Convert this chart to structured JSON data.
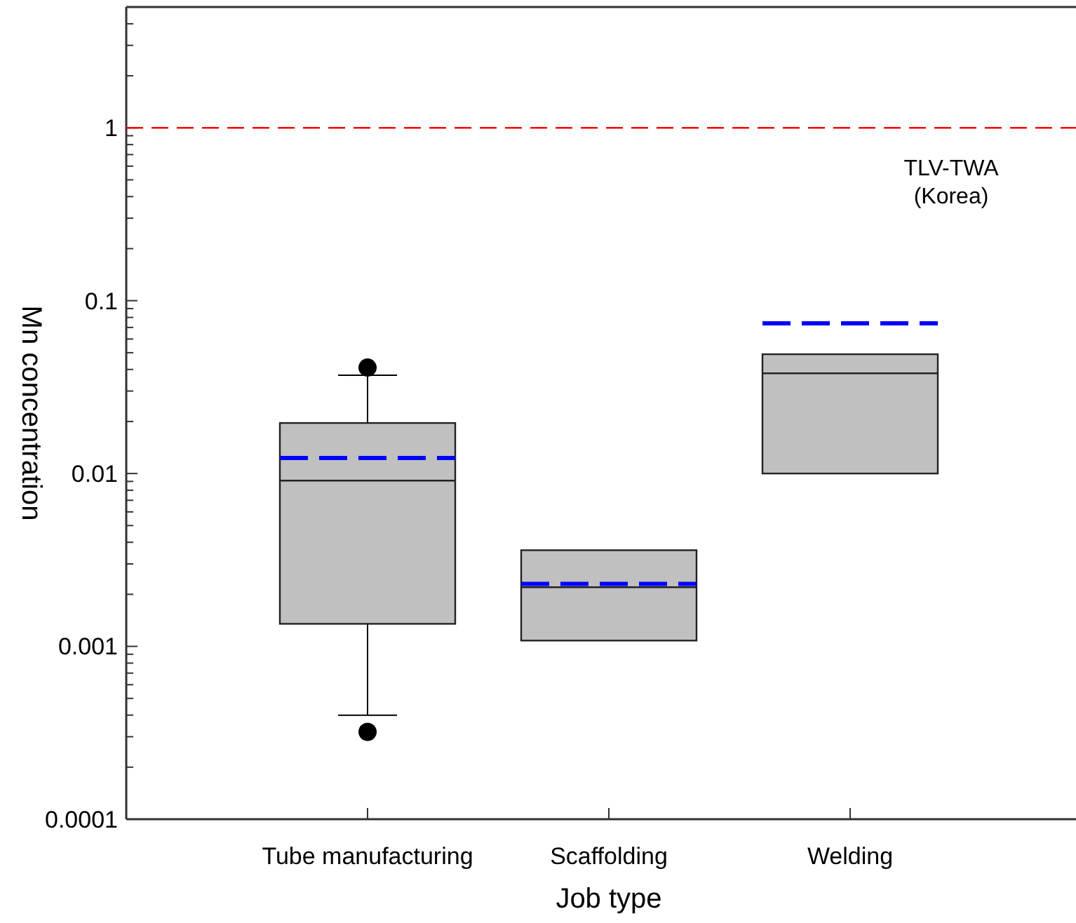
{
  "chart_data": {
    "type": "box",
    "xlabel": "Job type",
    "ylabel": "Mn concentration",
    "log": true,
    "categories": [
      "Tube manufacturing",
      "Scaffolding",
      "Welding"
    ],
    "boxes": [
      {
        "low": 0.0004,
        "q1": 0.00135,
        "median": 0.0091,
        "q3": 0.0196,
        "high": 0.037,
        "mean": 0.0123,
        "outliers": [
          0.041,
          0.00032
        ]
      },
      {
        "low": 0.00108,
        "q1": 0.00108,
        "median": 0.0022,
        "q3": 0.0036,
        "high": 0.0036,
        "mean": 0.0023
      },
      {
        "low": 0.01,
        "q1": 0.01,
        "median": 0.038,
        "q3": 0.049,
        "high": 0.049,
        "mean": 0.074
      }
    ],
    "color": "#c0c0c0",
    "ylim": [
      0.0001,
      5
    ],
    "yticks": [
      0.0001,
      {
        "value": 0.0002,
        "label": null
      },
      {
        "value": 0.0003,
        "label": null
      },
      {
        "value": 0.0004,
        "label": null
      },
      {
        "value": 0.0005,
        "label": null
      },
      {
        "value": 0.0006,
        "label": null
      },
      {
        "value": 0.0007,
        "label": null
      },
      {
        "value": 0.0008,
        "label": null
      },
      {
        "value": 0.0009,
        "label": null
      },
      0.001,
      {
        "value": 0.002,
        "label": null
      },
      {
        "value": 0.003,
        "label": null
      },
      {
        "value": 0.004,
        "label": null
      },
      {
        "value": 0.005,
        "label": null
      },
      {
        "value": 0.006,
        "label": null
      },
      {
        "value": 0.007,
        "label": null
      },
      {
        "value": 0.008,
        "label": null
      },
      {
        "value": 0.009,
        "label": null
      },
      0.01,
      {
        "value": 0.02,
        "label": null
      },
      {
        "value": 0.03,
        "label": null
      },
      {
        "value": 0.04,
        "label": null
      },
      {
        "value": 0.05,
        "label": null
      },
      {
        "value": 0.06,
        "label": null
      },
      {
        "value": 0.07,
        "label": null
      },
      {
        "value": 0.08,
        "label": null
      },
      {
        "value": 0.09,
        "label": null
      },
      0.1,
      {
        "value": 0.2,
        "label": null
      },
      {
        "value": 0.3,
        "label": null
      },
      {
        "value": 0.4,
        "label": null
      },
      {
        "value": 0.5,
        "label": null
      },
      {
        "value": 0.6,
        "label": null
      },
      {
        "value": 0.7,
        "label": null
      },
      {
        "value": 0.8,
        "label": null
      },
      {
        "value": 0.9,
        "label": null
      },
      1,
      {
        "value": 2,
        "label": null
      },
      {
        "value": 3,
        "label": null
      },
      {
        "value": 4,
        "label": null
      }
    ],
    "ref_lines": [
      {
        "axis": "y",
        "value": 1,
        "label": "TLV-TWA\n(Korea)",
        "color": "#ff0000",
        "line_style": "dashed"
      }
    ]
  }
}
